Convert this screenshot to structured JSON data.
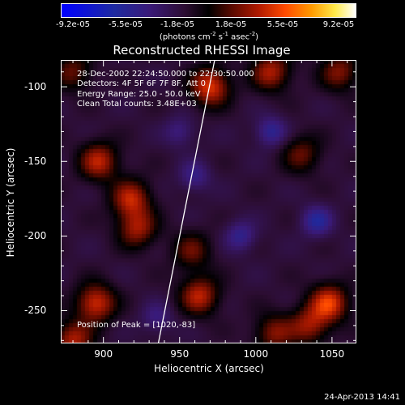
{
  "colorbar": {
    "ticks": [
      "-9.2e-05",
      "-5.5e-05",
      "-1.8e-05",
      "1.8e-05",
      "5.5e-05",
      "9.2e-05"
    ],
    "units_prefix": "(photons cm",
    "units_exp1": "-2",
    "units_mid": " s",
    "units_exp2": "-1",
    "units_mid2": " asec",
    "units_exp3": "-2",
    "units_suffix": ")"
  },
  "info": {
    "line1": "28-Dec-2002 22:24:50.000 to 22:30:50.000",
    "line2": "Detectors: 4F 5F 6F 7F 8F, Att 0",
    "line3": "Energy Range: 25.0 - 50.0 keV",
    "line4": "Clean    Total counts: 3.48E+03"
  },
  "peak_label": "Position of Peak = [1020,-83]",
  "timestamp": "24-Apr-2013 14:41",
  "chart_data": {
    "type": "heatmap",
    "title": "Reconstructed RHESSI Image",
    "xlabel": "Heliocentric X (arcsec)",
    "ylabel": "Heliocentric Y (arcsec)",
    "xlim": [
      872,
      1066
    ],
    "ylim": [
      -272,
      -82
    ],
    "xticks": [
      900,
      950,
      1000,
      1050
    ],
    "yticks": [
      -100,
      -150,
      -200,
      -250
    ],
    "zlim": [
      -9.2e-05,
      9.2e-05
    ],
    "limb_line": [
      [
        936,
        -272
      ],
      [
        973,
        -82
      ]
    ],
    "sources": [
      {
        "x": 970,
        "y": -100,
        "v": 1.0
      },
      {
        "x": 1010,
        "y": -90,
        "v": 0.8
      },
      {
        "x": 1055,
        "y": -90,
        "v": 0.65
      },
      {
        "x": 880,
        "y": -90,
        "v": 0.55
      },
      {
        "x": 918,
        "y": -175,
        "v": 0.85
      },
      {
        "x": 922,
        "y": -195,
        "v": 0.75
      },
      {
        "x": 897,
        "y": -150,
        "v": 0.85
      },
      {
        "x": 895,
        "y": -245,
        "v": 0.95
      },
      {
        "x": 880,
        "y": -270,
        "v": 0.8
      },
      {
        "x": 958,
        "y": -210,
        "v": 0.55
      },
      {
        "x": 963,
        "y": -240,
        "v": 0.85
      },
      {
        "x": 1048,
        "y": -245,
        "v": 1.0
      },
      {
        "x": 1035,
        "y": -260,
        "v": 0.7
      },
      {
        "x": 1030,
        "y": -145,
        "v": 0.55
      },
      {
        "x": 1012,
        "y": -265,
        "v": 0.65
      }
    ],
    "negatives": [
      {
        "x": 960,
        "y": -160,
        "v": 0.35
      },
      {
        "x": 1010,
        "y": -130,
        "v": 0.45
      },
      {
        "x": 1040,
        "y": -190,
        "v": 0.5
      },
      {
        "x": 990,
        "y": -200,
        "v": 0.4
      },
      {
        "x": 935,
        "y": -255,
        "v": 0.3
      },
      {
        "x": 950,
        "y": -130,
        "v": 0.3
      }
    ]
  }
}
